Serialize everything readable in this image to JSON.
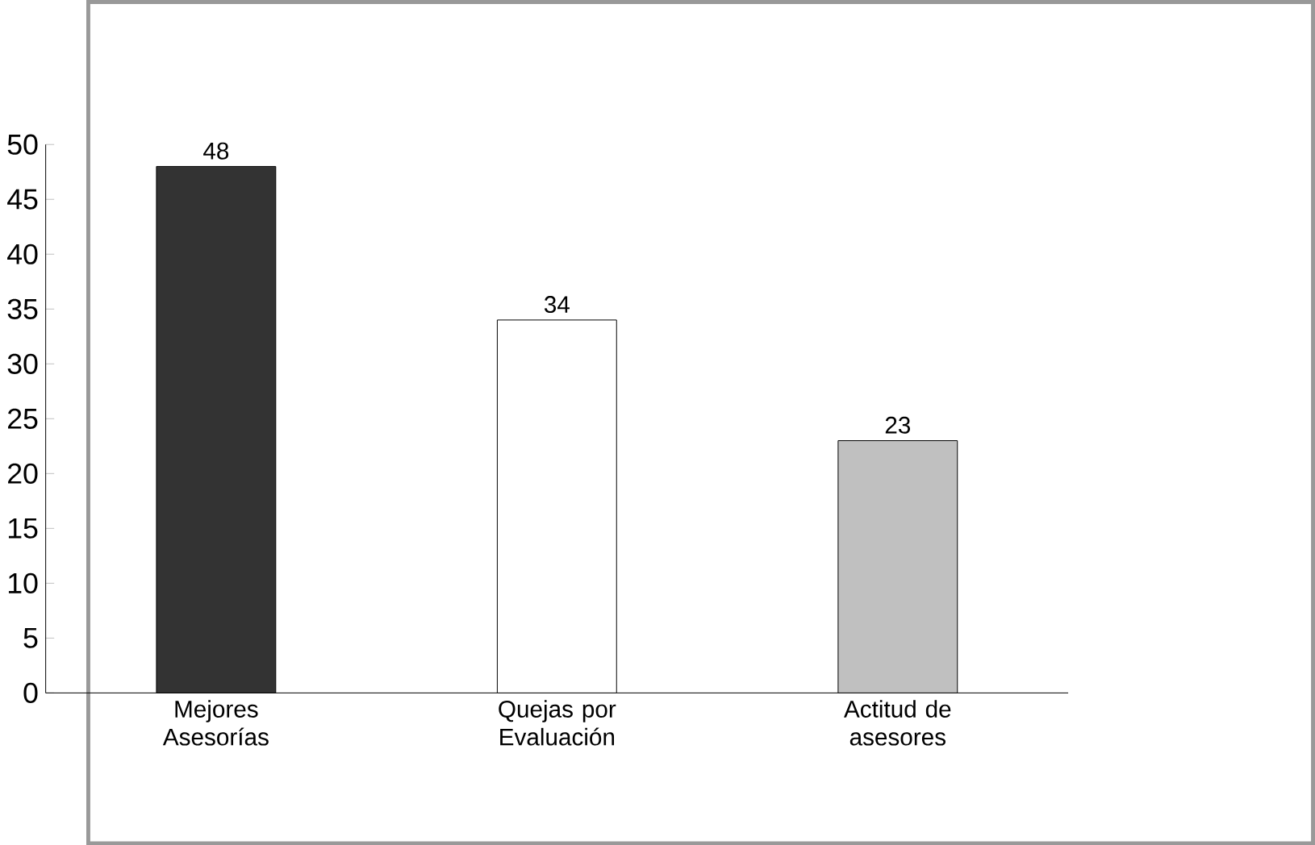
{
  "chart_data": {
    "type": "bar",
    "categories": [
      "Mejores Asesorías",
      "Quejas por Evaluación",
      "Actitud de asesores"
    ],
    "values": [
      48,
      34,
      23
    ],
    "colors": [
      "#333333",
      "#ffffff",
      "#c0c0c0"
    ],
    "ylim": [
      0,
      50
    ],
    "yticks": [
      0,
      5,
      10,
      15,
      20,
      25,
      30,
      35,
      40,
      45,
      50
    ],
    "data_labels": true
  }
}
